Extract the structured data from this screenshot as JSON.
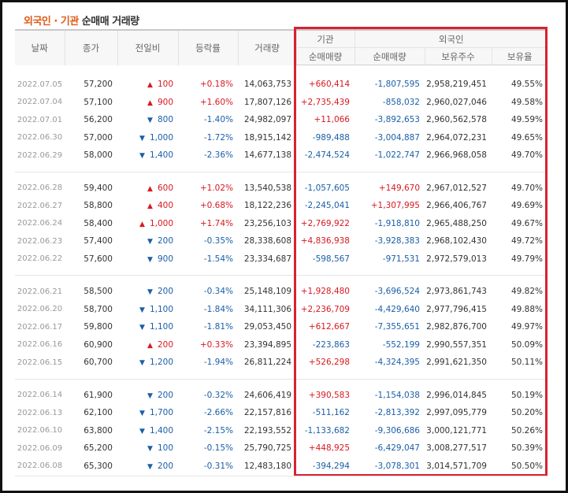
{
  "title": {
    "highlight": "외국인 · 기관",
    "rest": " 순매매 거래량"
  },
  "headers": {
    "date": "날짜",
    "close": "종가",
    "change": "전일비",
    "rate": "등락률",
    "volume": "거래량",
    "institution": "기관",
    "foreign": "외국인",
    "inst_net": "순매매량",
    "foreign_net": "순매매량",
    "foreign_shares": "보유주수",
    "foreign_ratio": "보유율"
  },
  "colors": {
    "up": "#d71920",
    "down": "#1a5fa8",
    "highlight_box": "#d7232f"
  },
  "icons": {
    "up": "triangle-up-icon",
    "down": "triangle-down-icon"
  },
  "groups": [
    [
      {
        "date": "2022.07.05",
        "close": "57,200",
        "dir": "up",
        "change": "100",
        "rate": "+0.18%",
        "volume": "14,063,753",
        "inst": "+660,414",
        "foreign": "-1,807,595",
        "shares": "2,958,219,451",
        "ratio": "49.55%"
      },
      {
        "date": "2022.07.04",
        "close": "57,100",
        "dir": "up",
        "change": "900",
        "rate": "+1.60%",
        "volume": "17,807,126",
        "inst": "+2,735,439",
        "foreign": "-858,032",
        "shares": "2,960,027,046",
        "ratio": "49.58%"
      },
      {
        "date": "2022.07.01",
        "close": "56,200",
        "dir": "down",
        "change": "800",
        "rate": "-1.40%",
        "volume": "24,982,097",
        "inst": "+11,066",
        "foreign": "-3,892,653",
        "shares": "2,960,562,578",
        "ratio": "49.59%"
      },
      {
        "date": "2022.06.30",
        "close": "57,000",
        "dir": "down",
        "change": "1,000",
        "rate": "-1.72%",
        "volume": "18,915,142",
        "inst": "-989,488",
        "foreign": "-3,004,887",
        "shares": "2,964,072,231",
        "ratio": "49.65%"
      },
      {
        "date": "2022.06.29",
        "close": "58,000",
        "dir": "down",
        "change": "1,400",
        "rate": "-2.36%",
        "volume": "14,677,138",
        "inst": "-2,474,524",
        "foreign": "-1,022,747",
        "shares": "2,966,968,058",
        "ratio": "49.70%"
      }
    ],
    [
      {
        "date": "2022.06.28",
        "close": "59,400",
        "dir": "up",
        "change": "600",
        "rate": "+1.02%",
        "volume": "13,540,538",
        "inst": "-1,057,605",
        "foreign": "+149,670",
        "shares": "2,967,012,527",
        "ratio": "49.70%"
      },
      {
        "date": "2022.06.27",
        "close": "58,800",
        "dir": "up",
        "change": "400",
        "rate": "+0.68%",
        "volume": "18,122,236",
        "inst": "-2,245,041",
        "foreign": "+1,307,995",
        "shares": "2,966,406,767",
        "ratio": "49.69%"
      },
      {
        "date": "2022.06.24",
        "close": "58,400",
        "dir": "up",
        "change": "1,000",
        "rate": "+1.74%",
        "volume": "23,256,103",
        "inst": "+2,769,922",
        "foreign": "-1,918,810",
        "shares": "2,965,488,250",
        "ratio": "49.67%"
      },
      {
        "date": "2022.06.23",
        "close": "57,400",
        "dir": "down",
        "change": "200",
        "rate": "-0.35%",
        "volume": "28,338,608",
        "inst": "+4,836,938",
        "foreign": "-3,928,383",
        "shares": "2,968,102,430",
        "ratio": "49.72%"
      },
      {
        "date": "2022.06.22",
        "close": "57,600",
        "dir": "down",
        "change": "900",
        "rate": "-1.54%",
        "volume": "23,334,687",
        "inst": "-598,567",
        "foreign": "-971,531",
        "shares": "2,972,579,013",
        "ratio": "49.79%"
      }
    ],
    [
      {
        "date": "2022.06.21",
        "close": "58,500",
        "dir": "down",
        "change": "200",
        "rate": "-0.34%",
        "volume": "25,148,109",
        "inst": "+1,928,480",
        "foreign": "-3,696,524",
        "shares": "2,973,861,743",
        "ratio": "49.82%"
      },
      {
        "date": "2022.06.20",
        "close": "58,700",
        "dir": "down",
        "change": "1,100",
        "rate": "-1.84%",
        "volume": "34,111,306",
        "inst": "+2,236,709",
        "foreign": "-4,429,640",
        "shares": "2,977,796,415",
        "ratio": "49.88%"
      },
      {
        "date": "2022.06.17",
        "close": "59,800",
        "dir": "down",
        "change": "1,100",
        "rate": "-1.81%",
        "volume": "29,053,450",
        "inst": "+612,667",
        "foreign": "-7,355,651",
        "shares": "2,982,876,700",
        "ratio": "49.97%"
      },
      {
        "date": "2022.06.16",
        "close": "60,900",
        "dir": "up",
        "change": "200",
        "rate": "+0.33%",
        "volume": "23,394,895",
        "inst": "-223,863",
        "foreign": "-552,199",
        "shares": "2,990,557,351",
        "ratio": "50.09%"
      },
      {
        "date": "2022.06.15",
        "close": "60,700",
        "dir": "down",
        "change": "1,200",
        "rate": "-1.94%",
        "volume": "26,811,224",
        "inst": "+526,298",
        "foreign": "-4,324,395",
        "shares": "2,991,621,350",
        "ratio": "50.11%"
      }
    ],
    [
      {
        "date": "2022.06.14",
        "close": "61,900",
        "dir": "down",
        "change": "200",
        "rate": "-0.32%",
        "volume": "24,606,419",
        "inst": "+390,583",
        "foreign": "-1,154,038",
        "shares": "2,996,014,845",
        "ratio": "50.19%"
      },
      {
        "date": "2022.06.13",
        "close": "62,100",
        "dir": "down",
        "change": "1,700",
        "rate": "-2.66%",
        "volume": "22,157,816",
        "inst": "-511,162",
        "foreign": "-2,813,392",
        "shares": "2,997,095,779",
        "ratio": "50.20%"
      },
      {
        "date": "2022.06.10",
        "close": "63,800",
        "dir": "down",
        "change": "1,400",
        "rate": "-2.15%",
        "volume": "22,193,552",
        "inst": "-1,133,682",
        "foreign": "-9,306,686",
        "shares": "3,000,121,771",
        "ratio": "50.26%"
      },
      {
        "date": "2022.06.09",
        "close": "65,200",
        "dir": "down",
        "change": "100",
        "rate": "-0.15%",
        "volume": "25,790,725",
        "inst": "+448,925",
        "foreign": "-6,429,047",
        "shares": "3,008,277,517",
        "ratio": "50.39%"
      },
      {
        "date": "2022.06.08",
        "close": "65,300",
        "dir": "down",
        "change": "200",
        "rate": "-0.31%",
        "volume": "12,483,180",
        "inst": "-394,294",
        "foreign": "-3,078,301",
        "shares": "3,014,571,709",
        "ratio": "50.50%"
      }
    ]
  ]
}
